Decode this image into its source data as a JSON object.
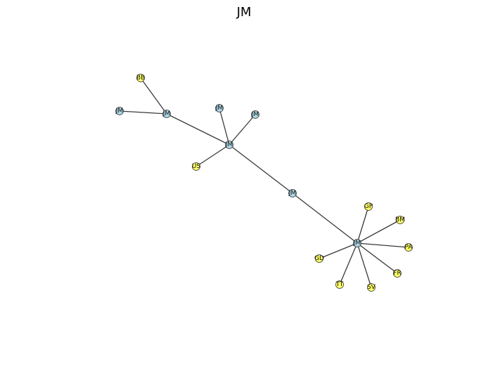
{
  "title": "JM",
  "colors": {
    "jm_node": "#add8e6",
    "country_node": "#ffff66",
    "edge": "#3a3a3a"
  },
  "nodes": [
    {
      "id": "n_bb",
      "label": "BB",
      "type": "country"
    },
    {
      "id": "n_jm1",
      "label": "JM",
      "type": "jm"
    },
    {
      "id": "n_jm2",
      "label": "JM",
      "type": "jm"
    },
    {
      "id": "n_jm3",
      "label": "JM",
      "type": "jm"
    },
    {
      "id": "n_jm4",
      "label": "JM",
      "type": "jm"
    },
    {
      "id": "n_hub1",
      "label": "JM",
      "type": "jm"
    },
    {
      "id": "n_us",
      "label": "US",
      "type": "country"
    },
    {
      "id": "n_mid",
      "label": "JM",
      "type": "jm"
    },
    {
      "id": "n_hub2",
      "label": "JM",
      "type": "jm"
    },
    {
      "id": "n_gp",
      "label": "GP",
      "type": "country"
    },
    {
      "id": "n_bm",
      "label": "BM",
      "type": "country"
    },
    {
      "id": "n_pa",
      "label": "PA",
      "type": "country"
    },
    {
      "id": "n_fr",
      "label": "FR",
      "type": "country"
    },
    {
      "id": "n_sv",
      "label": "SV",
      "type": "country"
    },
    {
      "id": "n_tt",
      "label": "TT",
      "type": "country"
    },
    {
      "id": "n_gd",
      "label": "GD",
      "type": "country"
    }
  ],
  "edges": [
    [
      "n_bb",
      "n_jm2"
    ],
    [
      "n_jm1",
      "n_jm2"
    ],
    [
      "n_jm2",
      "n_hub1"
    ],
    [
      "n_jm3",
      "n_hub1"
    ],
    [
      "n_jm4",
      "n_hub1"
    ],
    [
      "n_us",
      "n_hub1"
    ],
    [
      "n_hub1",
      "n_mid"
    ],
    [
      "n_mid",
      "n_hub2"
    ],
    [
      "n_hub2",
      "n_gp"
    ],
    [
      "n_hub2",
      "n_bm"
    ],
    [
      "n_hub2",
      "n_pa"
    ],
    [
      "n_hub2",
      "n_fr"
    ],
    [
      "n_hub2",
      "n_sv"
    ],
    [
      "n_hub2",
      "n_tt"
    ],
    [
      "n_hub2",
      "n_gd"
    ]
  ]
}
